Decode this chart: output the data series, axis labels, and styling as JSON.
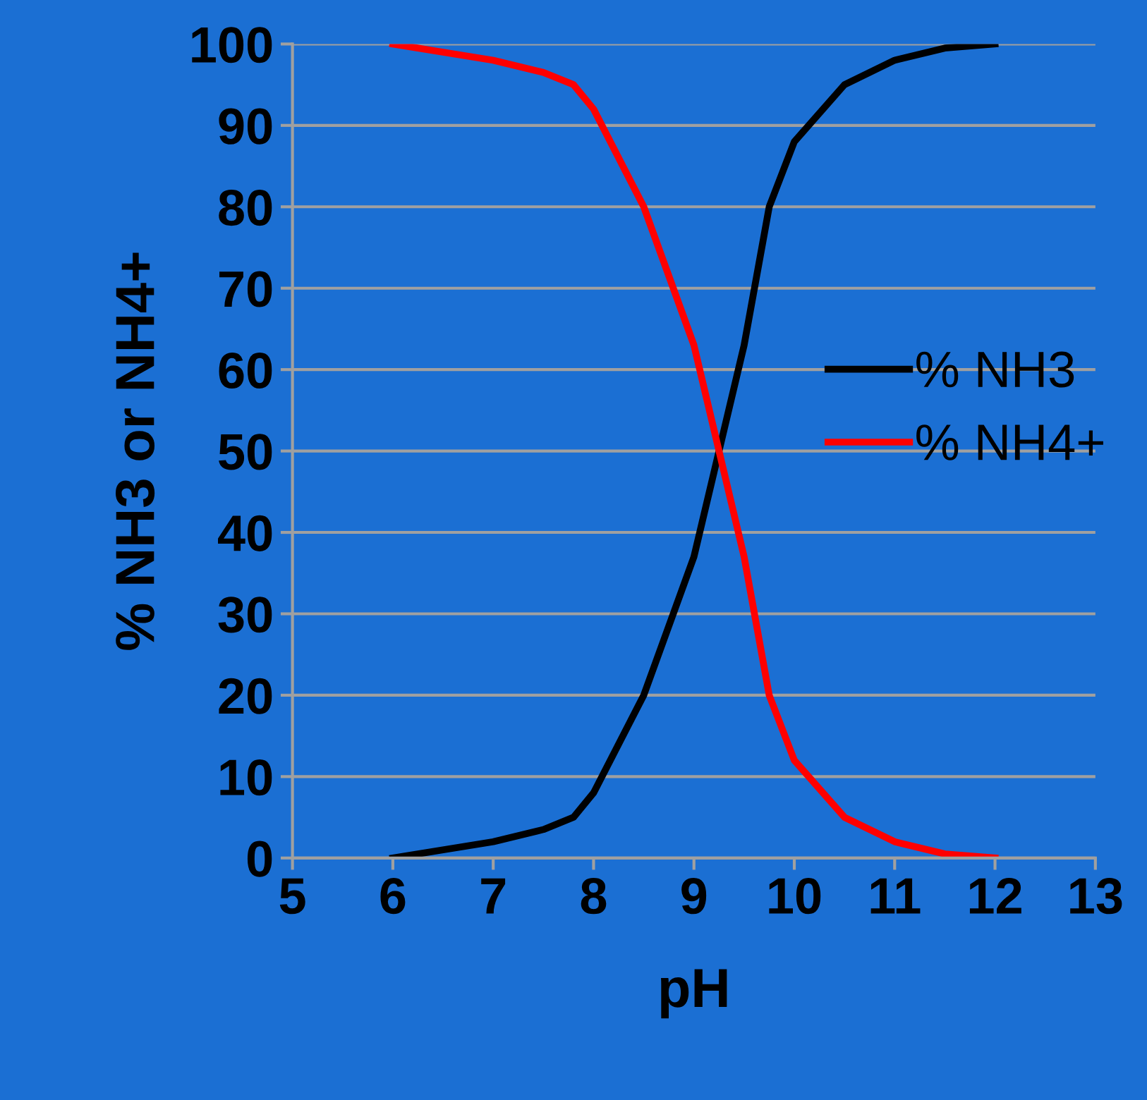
{
  "chart_data": {
    "type": "line",
    "xlabel": "pH",
    "ylabel": "% NH3 or NH4+",
    "xlim": [
      5,
      13
    ],
    "xticks": [
      5,
      6,
      7,
      8,
      9,
      10,
      11,
      12,
      13
    ],
    "ylim": [
      0,
      100
    ],
    "yticks": [
      0,
      10,
      20,
      30,
      40,
      50,
      60,
      70,
      80,
      90,
      100
    ],
    "grid": "y",
    "legend": "right",
    "marker": "none",
    "line_style": "solid",
    "series": [
      {
        "name": "% NH3",
        "color": "#000000",
        "x": [
          6,
          6.5,
          7,
          7.5,
          7.8,
          8,
          8.5,
          9,
          9.25,
          9.5,
          9.75,
          10,
          10.5,
          11,
          11.5,
          12
        ],
        "values": [
          0,
          1,
          2,
          3.5,
          5,
          8,
          20,
          37,
          50,
          63,
          80,
          88,
          95,
          98,
          99.5,
          100
        ]
      },
      {
        "name": "% NH4+",
        "color": "#ff0000",
        "x": [
          6,
          6.5,
          7,
          7.5,
          7.8,
          8,
          8.5,
          9,
          9.25,
          9.5,
          9.75,
          10,
          10.5,
          11,
          11.5,
          12
        ],
        "values": [
          100,
          99,
          98,
          96.5,
          95,
          92,
          80,
          63,
          50,
          37,
          20,
          12,
          5,
          2,
          0.5,
          0
        ]
      }
    ]
  }
}
